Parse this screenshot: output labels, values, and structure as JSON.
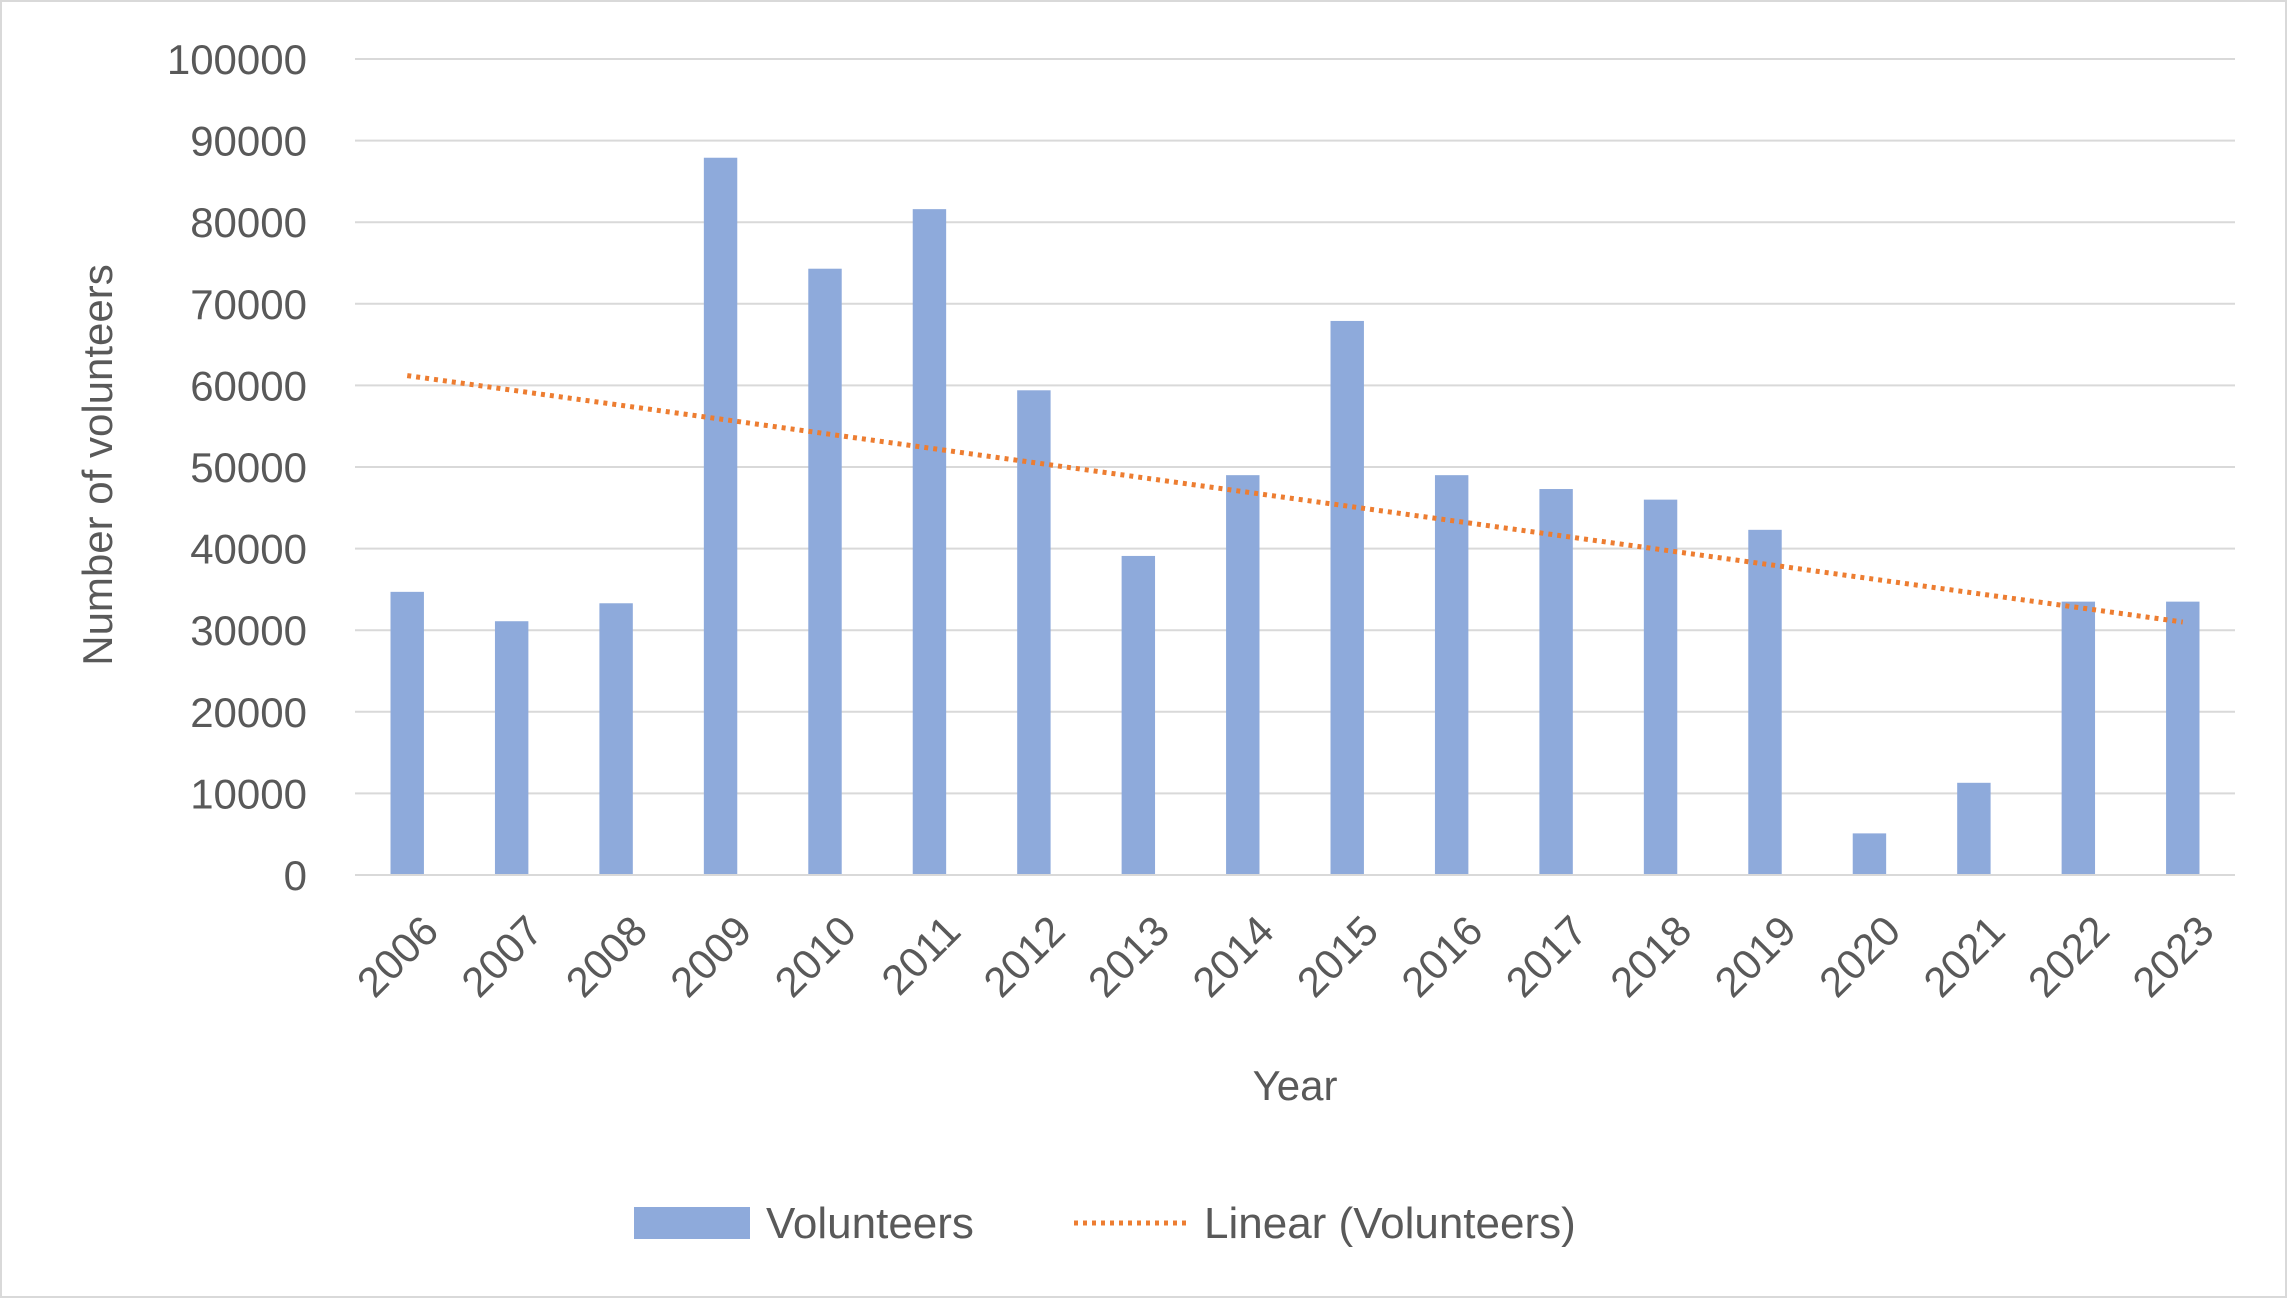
{
  "chart_data": {
    "type": "bar",
    "title": "",
    "xlabel": "Year",
    "ylabel": "Number of volunteers",
    "categories": [
      "2006",
      "2007",
      "2008",
      "2009",
      "2010",
      "2011",
      "2012",
      "2013",
      "2014",
      "2015",
      "2016",
      "2017",
      "2018",
      "2019",
      "2020",
      "2021",
      "2022",
      "2023"
    ],
    "series": [
      {
        "name": "Volunteers",
        "values": [
          34700,
          31100,
          33300,
          87900,
          74300,
          81600,
          59400,
          39100,
          49000,
          67900,
          49000,
          47300,
          46000,
          42300,
          5100,
          11300,
          33500,
          33500
        ],
        "color": "#8eaadb"
      }
    ],
    "trendline": {
      "type": "linear",
      "name": "Linear (Volunteers)",
      "start": 61200,
      "end": 31000,
      "color": "#ed7d31",
      "style": "dotted"
    },
    "yticks": [
      "0",
      "10000",
      "20000",
      "30000",
      "40000",
      "50000",
      "60000",
      "70000",
      "80000",
      "90000",
      "100000"
    ],
    "ylim": [
      0,
      100000
    ],
    "grid": true,
    "legend_position": "bottom"
  }
}
